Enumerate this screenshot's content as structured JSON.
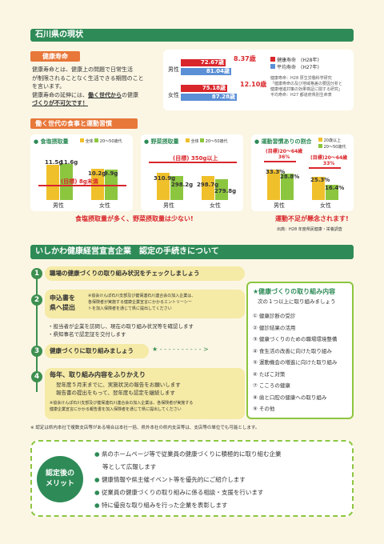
{
  "section1": {
    "title": "石川県の現状",
    "health_tag": "健康寿命",
    "health_desc": [
      "健康寿命とは、健康上の問題で日常生活",
      "が制限されることなく生活できる期間のこと",
      "を言います。",
      "健康寿命の延伸には、"
    ],
    "health_desc_emph1": "働く世代から",
    "health_desc_tail": "の健康",
    "health_desc_last": "づくりが不可欠です！",
    "lifespan": {
      "male_label": "男性",
      "female_label": "女性",
      "male_healthy": "72.67歳",
      "male_avg": "81.04歳",
      "male_gap": "8.37歳",
      "female_healthy": "75.18歳",
      "female_avg": "87.28歳",
      "female_gap": "12.10歳",
      "legend_healthy": "健康寿命　(H28年)",
      "legend_avg": "平均寿命　(H27年)",
      "sources": [
        "健康寿命：H28 厚生労働科学研究",
        "「健康寿命の及び地域格差の要因分析と",
        "健康増進対策の効果検証に関する研究」",
        "平均寿命：H27 都道府県別生命表"
      ]
    }
  },
  "section2": {
    "tag": "働く世代の食事と運動習慣",
    "salt": {
      "title": "食塩摂取量",
      "legend": [
        "全体",
        "20〜50歳代"
      ],
      "target": "(目標) 8g未満",
      "male": [
        "11.5g",
        "11.6g"
      ],
      "female": [
        "10.2g",
        "9.9g"
      ],
      "x": [
        "男性",
        "女性"
      ]
    },
    "veg": {
      "title": "野菜摂取量",
      "legend": [
        "全体",
        "20〜50歳代"
      ],
      "target": "(目標) 350g以上",
      "male": [
        "310.9g",
        "298.2g"
      ],
      "female": [
        "298.7g",
        "279.8g"
      ],
      "x": [
        "男性",
        "女性"
      ]
    },
    "exercise": {
      "title": "運動習慣ありの割合",
      "legend": [
        "20歳以上",
        "20〜50歳代"
      ],
      "target_m": "(目標)20〜64歳",
      "target_m_val": "36%",
      "target_f": "(目標)20〜64歳",
      "target_f_val": "33%",
      "male": [
        "33.3%",
        "28.8%"
      ],
      "female": [
        "25.3%",
        "16.4%"
      ],
      "x": [
        "男性",
        "女性"
      ]
    },
    "caption_diet": "食塩摂取量が多く、野菜摂取量は少ない!",
    "caption_ex": "運動不足が懸念されます!",
    "source": "出典：H28 年度県民健康・栄養調査"
  },
  "section3": {
    "title": "いしかわ健康経営宣言企業　認定の手続きについて",
    "step1": "職場の健康づくりの取り組み状況をチェックしましょう",
    "step2_title": [
      "申込書を",
      "県へ提出"
    ],
    "step2_note": [
      "※協会けんぽ石川支部及び健保連石川連合会の加入企業は、",
      "各保険者が実施する健康企業宣言にかかるエントリーシー",
      "トを加入保険者を通じて県に提出してください"
    ],
    "step2_bullets": [
      "・担当者が企業を訪問し、現在の取り組み状況等を確認します",
      "・県知事名で認定証を交付します"
    ],
    "step3": "健康づくりに取り組みましょう",
    "step4_title": "毎年、取り組み内容をふりかえり",
    "step4_lines": [
      "翌年度５月末までに、実施状況の報告をお願いします",
      "報告書の提出をもって、翌年度も認定を継続します"
    ],
    "step4_note": [
      "※協会けんぽ石川支部及び健保連石川連合会の加入企業は、各保険者が実施する",
      "健康企業宣言にかかる報告書を加入保険者を通じて県に提出してください"
    ],
    "box_title": "★健康づくりの取り組み内容",
    "box_sub": "次の１つ以上に取り組みましょう",
    "box_items": [
      "① 健康診断の受診",
      "② 健診結果の活用",
      "③ 健康づくりのための職場環境整備",
      "④ 食生活の改善に向けた取り組み",
      "⑤ 運動機会の増進に向けた取り組み",
      "⑥ たばこ対策",
      "⑦ こころの健康",
      "⑧ 歯と口腔の健康への取り組み",
      "⑨ その他"
    ],
    "footnote": "※ 認定は県内本社で複数支店等がある場合は本社一括、県外本社の県内支店等は、支店等の単位でも可能とします。"
  },
  "merit": {
    "badge": [
      "認定後の",
      "メリット"
    ],
    "items": [
      "県のホームページ等で従業員の健康づくりに積極的に取り組む企業",
      "等として広報します",
      "健康情報や県主催イベント等を優先的にご紹介します",
      "従業員の健康づくりの取り組みに係る相談・支援を行います",
      "特に優良な取り組みを行った企業を表彰します"
    ]
  }
}
